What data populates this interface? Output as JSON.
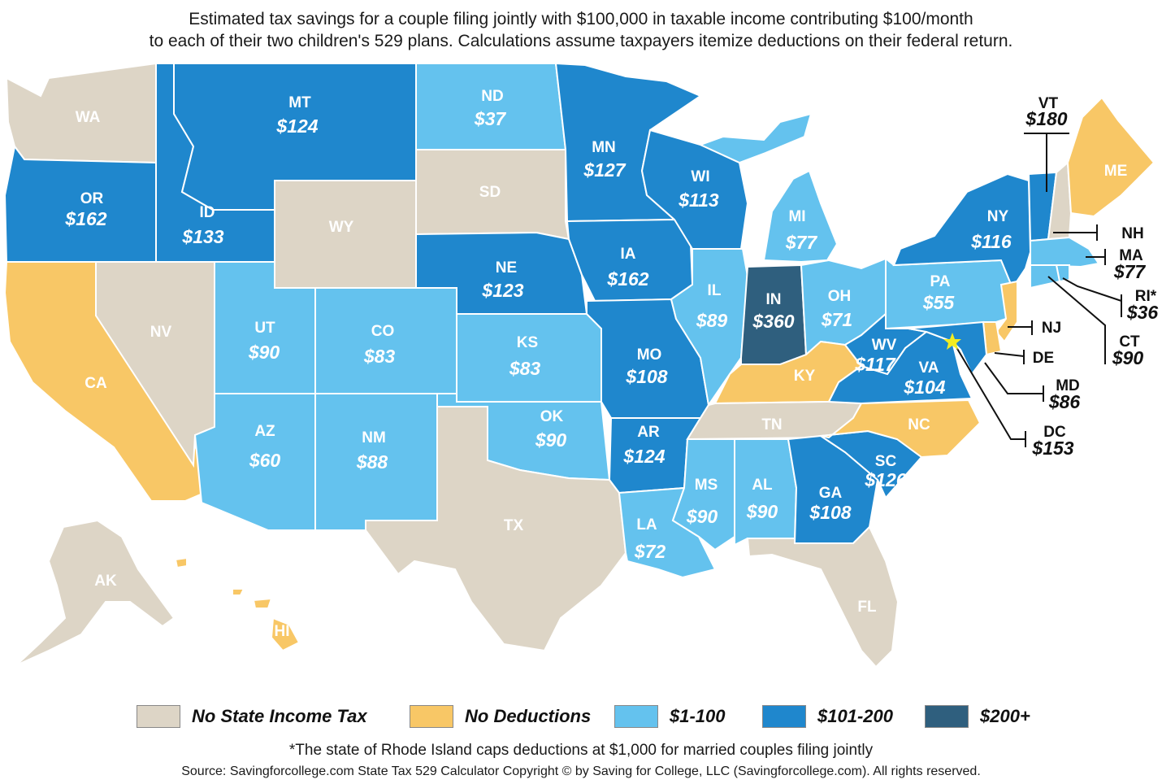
{
  "title": {
    "line1": "Estimated tax savings for a couple filing jointly with $100,000 in taxable income contributing $100/month",
    "line2": "to each of their two children's 529 plans. Calculations assume taxpayers itemize deductions on their federal return."
  },
  "colors": {
    "no_tax": "#ddd5c6",
    "no_deduction": "#f8c766",
    "low": "#64c2ee",
    "mid": "#1f87cd",
    "high": "#2f5f7e",
    "border": "#ffffff",
    "star": "#f2ec22"
  },
  "states": {
    "WA": {
      "abbr": "WA",
      "value": ""
    },
    "OR": {
      "abbr": "OR",
      "value": "$162"
    },
    "CA": {
      "abbr": "CA",
      "value": ""
    },
    "NV": {
      "abbr": "NV",
      "value": ""
    },
    "ID": {
      "abbr": "ID",
      "value": "$133"
    },
    "MT": {
      "abbr": "MT",
      "value": "$124"
    },
    "WY": {
      "abbr": "WY",
      "value": ""
    },
    "UT": {
      "abbr": "UT",
      "value": "$90"
    },
    "AZ": {
      "abbr": "AZ",
      "value": "$60"
    },
    "CO": {
      "abbr": "CO",
      "value": "$83"
    },
    "NM": {
      "abbr": "NM",
      "value": "$88"
    },
    "ND": {
      "abbr": "ND",
      "value": "$37"
    },
    "SD": {
      "abbr": "SD",
      "value": ""
    },
    "NE": {
      "abbr": "NE",
      "value": "$123"
    },
    "KS": {
      "abbr": "KS",
      "value": "$83"
    },
    "OK": {
      "abbr": "OK",
      "value": "$90"
    },
    "TX": {
      "abbr": "TX",
      "value": ""
    },
    "MN": {
      "abbr": "MN",
      "value": "$127"
    },
    "IA": {
      "abbr": "IA",
      "value": "$162"
    },
    "MO": {
      "abbr": "MO",
      "value": "$108"
    },
    "AR": {
      "abbr": "AR",
      "value": "$124"
    },
    "LA": {
      "abbr": "LA",
      "value": "$72"
    },
    "WI": {
      "abbr": "WI",
      "value": "$113"
    },
    "IL": {
      "abbr": "IL",
      "value": "$89"
    },
    "MI": {
      "abbr": "MI",
      "value": "$77"
    },
    "IN": {
      "abbr": "IN",
      "value": "$360"
    },
    "OH": {
      "abbr": "OH",
      "value": "$71"
    },
    "KY": {
      "abbr": "KY",
      "value": ""
    },
    "TN": {
      "abbr": "TN",
      "value": ""
    },
    "MS": {
      "abbr": "MS",
      "value": "$90"
    },
    "AL": {
      "abbr": "AL",
      "value": "$90"
    },
    "GA": {
      "abbr": "GA",
      "value": "$108"
    },
    "FL": {
      "abbr": "FL",
      "value": ""
    },
    "SC": {
      "abbr": "SC",
      "value": "$126"
    },
    "NC": {
      "abbr": "NC",
      "value": ""
    },
    "VA": {
      "abbr": "VA",
      "value": "$104"
    },
    "WV": {
      "abbr": "WV",
      "value": "$117"
    },
    "PA": {
      "abbr": "PA",
      "value": "$55"
    },
    "NY": {
      "abbr": "NY",
      "value": "$116"
    },
    "VT": {
      "abbr": "VT",
      "value": "$180"
    },
    "NH": {
      "abbr": "NH",
      "value": ""
    },
    "ME": {
      "abbr": "ME",
      "value": ""
    },
    "MA": {
      "abbr": "MA",
      "value": "$77"
    },
    "RI": {
      "abbr": "RI*",
      "value": "$36"
    },
    "CT": {
      "abbr": "CT",
      "value": "$90"
    },
    "NJ": {
      "abbr": "NJ",
      "value": ""
    },
    "DE": {
      "abbr": "DE",
      "value": ""
    },
    "MD": {
      "abbr": "MD",
      "value": "$86"
    },
    "DC": {
      "abbr": "DC",
      "value": "$153"
    },
    "AK": {
      "abbr": "AK",
      "value": ""
    },
    "HI": {
      "abbr": "HI",
      "value": ""
    }
  },
  "legend": {
    "no_tax": "No State Income Tax",
    "no_deduction": "No Deductions",
    "low": "$1-100",
    "mid": "$101-200",
    "high": "$200+"
  },
  "footnote": "*The state of Rhode Island caps deductions at $1,000 for married couples filing jointly",
  "source": "Source: Savingforcollege.com State Tax 529 Calculator    Copyright ©  by Saving for College, LLC (Savingforcollege.com). All rights reserved."
}
